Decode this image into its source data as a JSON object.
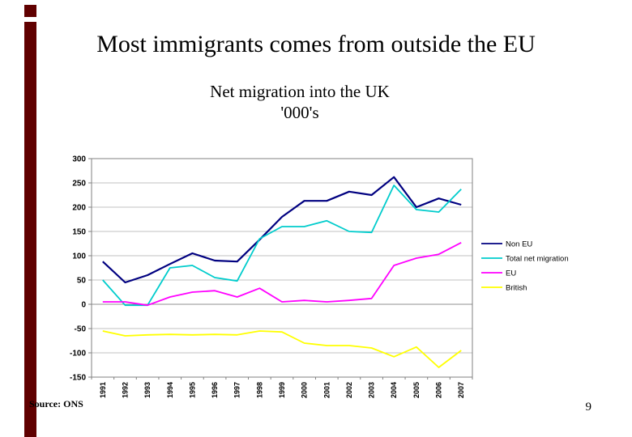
{
  "slide": {
    "title": "Most immigrants comes from outside the EU",
    "source": "Source: ONS",
    "page_number": "9",
    "accent_color": "#600000"
  },
  "chart_data": {
    "type": "line",
    "title": "Net migration into the UK",
    "subtitle": "'000's",
    "categories": [
      "1991",
      "1992",
      "1993",
      "1994",
      "1995",
      "1996",
      "1997",
      "1998",
      "1999",
      "2000",
      "2001",
      "2002",
      "2003",
      "2004",
      "2005",
      "2006",
      "2007"
    ],
    "series": [
      {
        "name": "Non EU",
        "color": "#000080",
        "values": [
          88,
          45,
          60,
          83,
          105,
          90,
          88,
          133,
          180,
          213,
          213,
          232,
          225,
          262,
          200,
          218,
          205
        ]
      },
      {
        "name": "Total net migration",
        "color": "#00CCCC",
        "values": [
          50,
          -2,
          -2,
          75,
          80,
          55,
          48,
          135,
          160,
          160,
          172,
          150,
          148,
          245,
          195,
          190,
          237
        ]
      },
      {
        "name": "EU",
        "color": "#FF00FF",
        "values": [
          5,
          5,
          -2,
          15,
          25,
          28,
          15,
          33,
          5,
          8,
          5,
          8,
          12,
          80,
          95,
          103,
          127
        ]
      },
      {
        "name": "British",
        "color": "#FFFF00",
        "values": [
          -55,
          -65,
          -63,
          -62,
          -63,
          -62,
          -63,
          -55,
          -57,
          -80,
          -85,
          -85,
          -90,
          -108,
          -88,
          -130,
          -95
        ]
      }
    ],
    "ylim": [
      -150,
      300
    ],
    "ytick_step": 50,
    "grid": true,
    "legend_position": "right",
    "plot_border_color": "#808080",
    "gridline_color": "#c0c0c0"
  }
}
